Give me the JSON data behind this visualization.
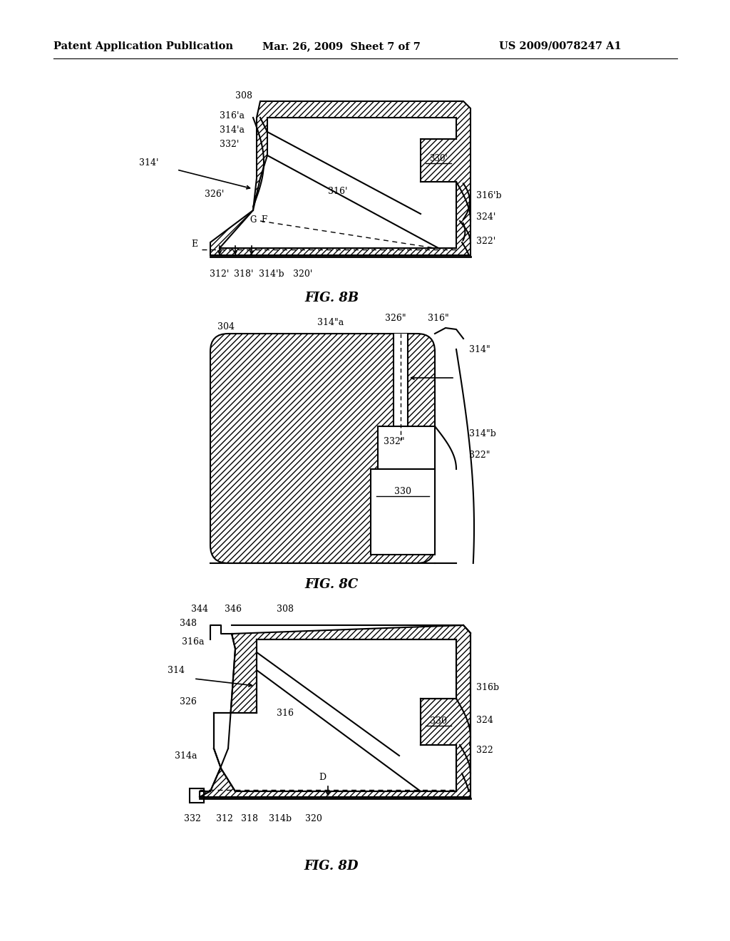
{
  "title_left": "Patent Application Publication",
  "title_center": "Mar. 26, 2009  Sheet 7 of 7",
  "title_right": "US 2009/0078247 A1",
  "fig8b_label": "FIG. 8B",
  "fig8c_label": "FIG. 8C",
  "fig8d_label": "FIG. 8D",
  "bg_color": "#ffffff",
  "line_color": "#000000"
}
